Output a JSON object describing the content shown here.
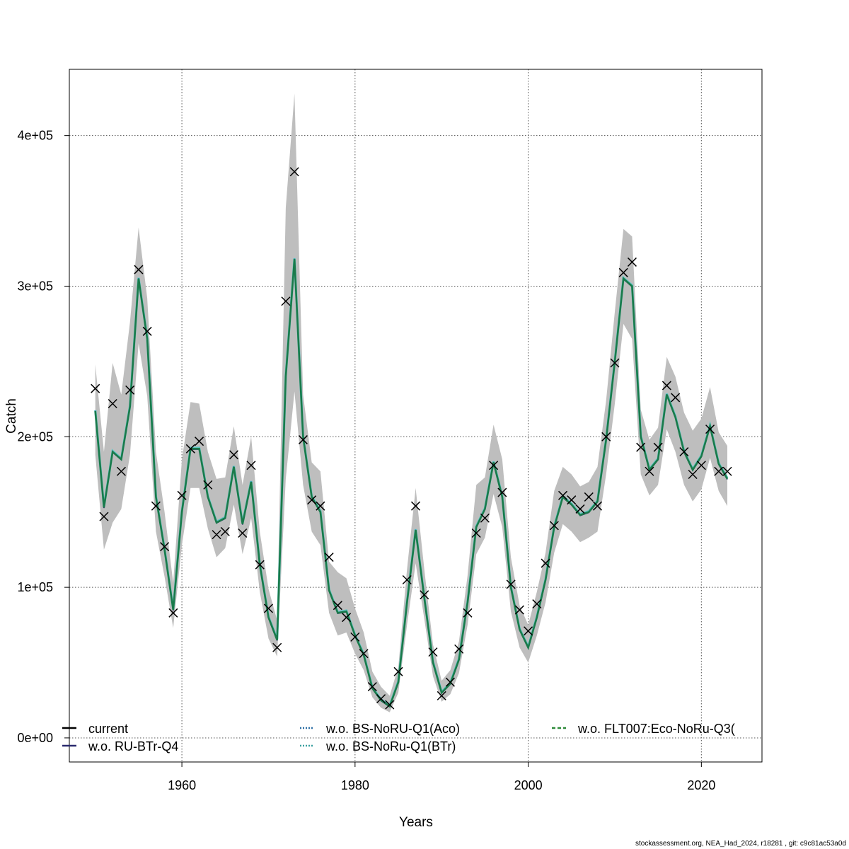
{
  "chart_data": {
    "type": "line",
    "title": "",
    "xlabel": "Years",
    "ylabel": "Catch",
    "xlim": [
      1947,
      2027
    ],
    "ylim": [
      -16000,
      444000
    ],
    "x_ticks": [
      1960,
      1980,
      2000,
      2020
    ],
    "y_ticks": [
      0,
      100000,
      200000,
      300000,
      400000
    ],
    "y_tick_labels": [
      "0e+00",
      "1e+05",
      "2e+05",
      "3e+05",
      "4e+05"
    ],
    "grid": true,
    "legend_position": "bottom",
    "legend": [
      {
        "label": "current",
        "color": "#000000",
        "style": "solid"
      },
      {
        "label": "w.o. RU-BTr-Q4",
        "color": "#2a2a6e",
        "style": "solid"
      },
      {
        "label": "w.o. BS-NoRU-Q1(Aco)",
        "color": "#2c6fa5",
        "style": "dotted"
      },
      {
        "label": "w.o. BS-NoRu-Q1(BTr)",
        "color": "#3aa0a0",
        "style": "dotted"
      },
      {
        "label": "w.o. FLT007:Eco-NoRu-Q3(",
        "color": "#2e8b3a",
        "style": "dashed"
      }
    ],
    "x": [
      1950,
      1951,
      1952,
      1953,
      1954,
      1955,
      1956,
      1957,
      1958,
      1959,
      1960,
      1961,
      1962,
      1963,
      1964,
      1965,
      1966,
      1967,
      1968,
      1969,
      1970,
      1971,
      1972,
      1973,
      1974,
      1975,
      1976,
      1977,
      1978,
      1979,
      1980,
      1981,
      1982,
      1983,
      1984,
      1985,
      1986,
      1987,
      1988,
      1989,
      1990,
      1991,
      1992,
      1993,
      1994,
      1995,
      1996,
      1997,
      1998,
      1999,
      2000,
      2001,
      2002,
      2003,
      2004,
      2005,
      2006,
      2007,
      2008,
      2009,
      2010,
      2011,
      2012,
      2013,
      2014,
      2015,
      2016,
      2017,
      2018,
      2019,
      2020,
      2021,
      2022,
      2023
    ],
    "estimate": [
      217000,
      153000,
      190000,
      185000,
      220000,
      305000,
      265000,
      160000,
      125000,
      85000,
      150000,
      192000,
      192000,
      160000,
      143000,
      146000,
      180000,
      142000,
      170000,
      115000,
      80000,
      65000,
      240000,
      318000,
      200000,
      160000,
      150000,
      98000,
      83000,
      84000,
      68000,
      55000,
      33000,
      25000,
      21000,
      37000,
      90000,
      138000,
      93000,
      50000,
      30000,
      36000,
      52000,
      90000,
      140000,
      152000,
      183000,
      160000,
      100000,
      72000,
      60000,
      80000,
      105000,
      140000,
      160000,
      155000,
      148000,
      150000,
      157000,
      198000,
      250000,
      305000,
      300000,
      200000,
      178000,
      185000,
      228000,
      213000,
      190000,
      178000,
      187000,
      207000,
      182000,
      172000
    ],
    "ci_lower": [
      188000,
      125000,
      143000,
      152000,
      188000,
      262000,
      227000,
      137000,
      107000,
      73000,
      128000,
      166000,
      166000,
      139000,
      120000,
      126000,
      155000,
      122000,
      146000,
      97000,
      66000,
      54000,
      172000,
      230000,
      168000,
      137000,
      128000,
      83000,
      68000,
      70000,
      56000,
      45000,
      27000,
      20000,
      17000,
      30000,
      75000,
      116000,
      79000,
      41000,
      24000,
      29000,
      43000,
      75000,
      122000,
      133000,
      162000,
      140000,
      84000,
      60000,
      50000,
      68000,
      90000,
      123000,
      142000,
      137000,
      130000,
      133000,
      137000,
      175000,
      222000,
      275000,
      265000,
      175000,
      161000,
      168000,
      205000,
      190000,
      168000,
      157000,
      165000,
      186000,
      164000,
      154000
    ],
    "ci_upper": [
      248000,
      190000,
      249000,
      228000,
      276000,
      339000,
      292000,
      190000,
      150000,
      103000,
      185000,
      223000,
      222000,
      190000,
      172000,
      173000,
      207000,
      168000,
      200000,
      137000,
      99000,
      78000,
      352000,
      428000,
      228000,
      183000,
      177000,
      117000,
      110000,
      106000,
      86000,
      70000,
      44000,
      34000,
      28000,
      47000,
      112000,
      166000,
      112000,
      62000,
      38000,
      45000,
      64000,
      108000,
      168000,
      173000,
      208000,
      185000,
      120000,
      88000,
      75000,
      97000,
      123000,
      164000,
      180000,
      175000,
      167000,
      170000,
      180000,
      224000,
      283000,
      338000,
      333000,
      218000,
      198000,
      206000,
      253000,
      240000,
      216000,
      204000,
      212000,
      233000,
      203000,
      194000
    ],
    "observed": [
      232000,
      147000,
      222000,
      177000,
      231000,
      311000,
      270000,
      154000,
      127000,
      83000,
      161000,
      192000,
      197000,
      168000,
      135000,
      137000,
      188000,
      136000,
      181000,
      115000,
      86000,
      60000,
      290000,
      376000,
      198000,
      158000,
      154000,
      120000,
      88000,
      80000,
      67000,
      56000,
      34000,
      26000,
      22000,
      44000,
      105000,
      154000,
      95000,
      57000,
      28000,
      37000,
      59000,
      83000,
      136000,
      146000,
      181000,
      163000,
      102000,
      85000,
      71000,
      89000,
      116000,
      141000,
      161000,
      158000,
      152000,
      160000,
      154000,
      200000,
      249000,
      309000,
      316000,
      193000,
      177000,
      193000,
      234000,
      226000,
      190000,
      175000,
      181000,
      205000,
      177000,
      177000
    ]
  },
  "footer": "stockassessment.org, NEA_Had_2024, r18281 , git: c9c81ac53a0d"
}
